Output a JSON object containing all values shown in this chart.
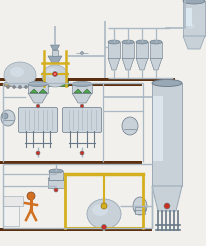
{
  "steel_light": "#c8d0d8",
  "steel_mid": "#98a8b4",
  "steel_dark": "#6878880",
  "steel_gradient": "#d8e0e8",
  "pipe_color": "#aab8c4",
  "floor_color": "#5a3010",
  "yellow_color": "#d4b020",
  "green_color": "#50a850",
  "red_color": "#c83020",
  "orange_color": "#d07020",
  "blue_color": "#3050a0",
  "bg_color": "#ffffff",
  "wall_bg": "#e8ece8"
}
